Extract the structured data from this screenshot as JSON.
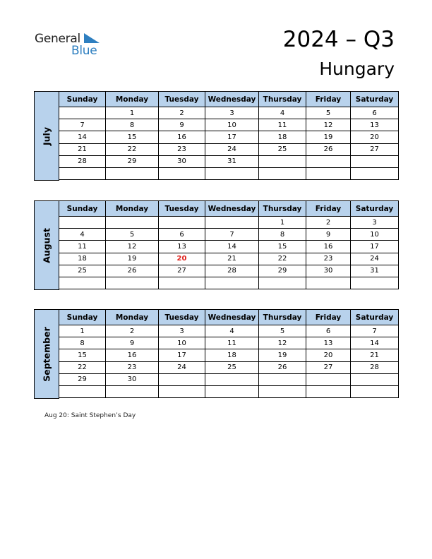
{
  "header": {
    "logo_general": "General",
    "logo_blue": "Blue",
    "title": "2024 – Q3",
    "country": "Hungary"
  },
  "weekdays": [
    "Sunday",
    "Monday",
    "Tuesday",
    "Wednesday",
    "Thursday",
    "Friday",
    "Saturday"
  ],
  "months": [
    {
      "name": "July",
      "weeks": [
        [
          "",
          "1",
          "2",
          "3",
          "4",
          "5",
          "6"
        ],
        [
          "7",
          "8",
          "9",
          "10",
          "11",
          "12",
          "13"
        ],
        [
          "14",
          "15",
          "16",
          "17",
          "18",
          "19",
          "20"
        ],
        [
          "21",
          "22",
          "23",
          "24",
          "25",
          "26",
          "27"
        ],
        [
          "28",
          "29",
          "30",
          "31",
          "",
          "",
          ""
        ],
        [
          "",
          "",
          "",
          "",
          "",
          "",
          ""
        ]
      ],
      "holidays": []
    },
    {
      "name": "August",
      "weeks": [
        [
          "",
          "",
          "",
          "",
          "1",
          "2",
          "3"
        ],
        [
          "4",
          "5",
          "6",
          "7",
          "8",
          "9",
          "10"
        ],
        [
          "11",
          "12",
          "13",
          "14",
          "15",
          "16",
          "17"
        ],
        [
          "18",
          "19",
          "20",
          "21",
          "22",
          "23",
          "24"
        ],
        [
          "25",
          "26",
          "27",
          "28",
          "29",
          "30",
          "31"
        ],
        [
          "",
          "",
          "",
          "",
          "",
          "",
          ""
        ]
      ],
      "holidays": [
        "20"
      ]
    },
    {
      "name": "September",
      "weeks": [
        [
          "1",
          "2",
          "3",
          "4",
          "5",
          "6",
          "7"
        ],
        [
          "8",
          "9",
          "10",
          "11",
          "12",
          "13",
          "14"
        ],
        [
          "15",
          "16",
          "17",
          "18",
          "19",
          "20",
          "21"
        ],
        [
          "22",
          "23",
          "24",
          "25",
          "26",
          "27",
          "28"
        ],
        [
          "29",
          "30",
          "",
          "",
          "",
          "",
          ""
        ],
        [
          "",
          "",
          "",
          "",
          "",
          "",
          ""
        ]
      ],
      "holidays": []
    }
  ],
  "notes": [
    "Aug 20: Saint Stephen’s Day"
  ],
  "colors": {
    "header_fill": "#b8d2ec",
    "holiday": "#e0201b",
    "logo_blue": "#2e7fc0"
  }
}
